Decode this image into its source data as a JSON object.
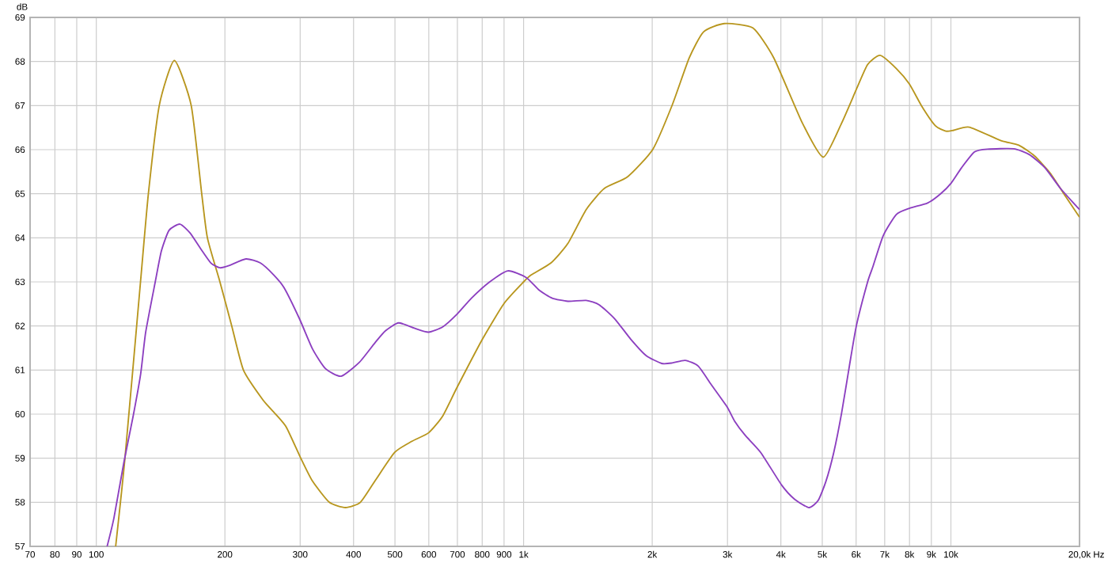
{
  "chart_data": {
    "type": "line",
    "xlabel": "Hz",
    "ylabel": "dB",
    "log": "x",
    "grid": true,
    "line_style": "solid",
    "xlim": [
      70,
      20000
    ],
    "ylim": [
      57,
      69
    ],
    "xticks": [
      70,
      80,
      90,
      100,
      200,
      300,
      400,
      500,
      600,
      700,
      800,
      900,
      {
        "value": 1000,
        "label": "1k"
      },
      {
        "value": 2000,
        "label": "2k"
      },
      {
        "value": 3000,
        "label": "3k"
      },
      {
        "value": 4000,
        "label": "4k"
      },
      {
        "value": 5000,
        "label": "5k"
      },
      {
        "value": 6000,
        "label": "6k"
      },
      {
        "value": 7000,
        "label": "7k"
      },
      {
        "value": 8000,
        "label": "8k"
      },
      {
        "value": 9000,
        "label": "9k"
      },
      {
        "value": 10000,
        "label": "10k"
      },
      {
        "value": 20000,
        "label": "20,0k"
      }
    ],
    "yticks": [
      57,
      58,
      59,
      60,
      61,
      62,
      63,
      64,
      65,
      66,
      67,
      68,
      69
    ],
    "series": [
      {
        "color": "#b8961e",
        "x": [
          111,
          116.7,
          126.9,
          132.4,
          140.4,
          152.3,
          166.8,
          176.5,
          182,
          194.7,
          207.5,
          221,
          245.6,
          263.4,
          278.6,
          301,
          320.6,
          351,
          383,
          415,
          450,
          499,
          546.7,
          600,
          647,
          699,
          799,
          900,
          1000,
          1043,
          1159,
          1269,
          1401,
          1545,
          1754,
          2007,
          2227,
          2441,
          2636,
          2949,
          3440,
          3851,
          4494,
          5027,
          5548,
          6010,
          6384,
          6829,
          7453,
          7994,
          8577,
          9200,
          9730,
          10150,
          11040,
          13060,
          14420,
          15680,
          17070,
          18550,
          20000
        ],
        "values": [
          57.0,
          59.0,
          63.0,
          65.0,
          67.0,
          68.02,
          67.0,
          65.0,
          64.0,
          63.0,
          62.0,
          61.0,
          60.32,
          59.99,
          59.7,
          59.0,
          58.48,
          58.0,
          57.88,
          58.0,
          58.5,
          59.13,
          59.38,
          59.58,
          59.96,
          60.61,
          61.68,
          62.51,
          63.0,
          63.16,
          63.43,
          63.87,
          64.64,
          65.12,
          65.39,
          66.01,
          67.01,
          68.08,
          68.67,
          68.86,
          68.76,
          68.08,
          66.6,
          65.83,
          66.6,
          67.37,
          67.93,
          68.14,
          67.84,
          67.49,
          66.96,
          66.54,
          66.42,
          66.44,
          66.51,
          66.21,
          66.1,
          65.86,
          65.47,
          64.94,
          64.47
        ]
      },
      {
        "color": "#8c3fc0",
        "x": [
          106,
          110,
          116,
          122,
          127,
          130.5,
          137.4,
          142,
          148,
          157,
          165.7,
          175.3,
          185.4,
          194.7,
          204.5,
          224,
          242,
          260,
          275,
          299,
          321,
          344,
          374,
          413,
          449,
          475,
          510,
          555,
          599,
          647,
          699,
          755,
          833,
          919,
          1014,
          1088,
          1167,
          1270,
          1401,
          1503,
          1635,
          1778,
          1935,
          2105,
          2227,
          2388,
          2563,
          2749,
          2991,
          3119,
          3300,
          3589,
          4017,
          4307,
          4655,
          4890,
          5101,
          5319,
          5548,
          5786,
          6010,
          6384,
          6566,
          6945,
          7453,
          7994,
          8821,
          9460,
          10010,
          10590,
          11360,
          12180,
          14020,
          15250,
          16600,
          18050,
          20000
        ],
        "values": [
          57.0,
          57.65,
          58.9,
          59.96,
          60.91,
          61.86,
          63.0,
          63.7,
          64.17,
          64.31,
          64.11,
          63.76,
          63.43,
          63.32,
          63.37,
          63.52,
          63.43,
          63.16,
          62.87,
          62.16,
          61.47,
          61.03,
          60.86,
          61.18,
          61.62,
          61.89,
          62.07,
          61.95,
          61.86,
          61.98,
          62.27,
          62.63,
          63.0,
          63.25,
          63.1,
          62.81,
          62.63,
          62.56,
          62.58,
          62.48,
          62.16,
          61.71,
          61.33,
          61.15,
          61.16,
          61.22,
          61.09,
          60.67,
          60.17,
          59.84,
          59.52,
          59.13,
          58.39,
          58.07,
          57.88,
          58.04,
          58.48,
          59.13,
          60.02,
          61.09,
          62.01,
          63.0,
          63.34,
          64.05,
          64.53,
          64.67,
          64.79,
          65.0,
          65.24,
          65.59,
          65.95,
          66.01,
          66.02,
          65.89,
          65.59,
          65.12,
          64.64
        ]
      }
    ]
  }
}
